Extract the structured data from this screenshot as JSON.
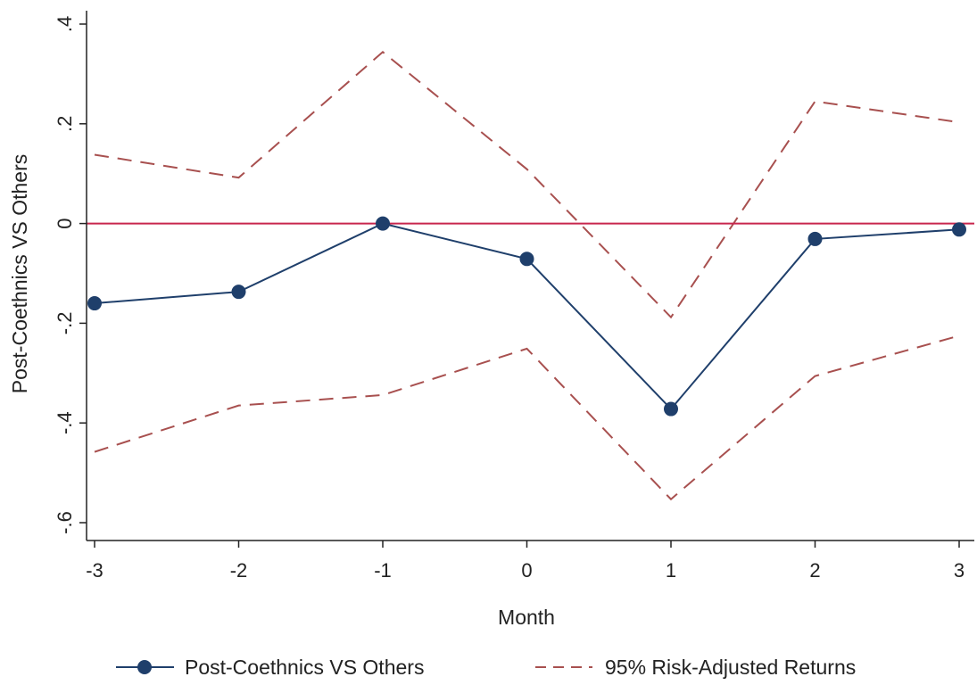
{
  "chart_data": {
    "type": "line",
    "title": "",
    "xlabel": "Month",
    "ylabel": "Post-Coethnics VS Others",
    "x": [
      -3,
      -2,
      -1,
      0,
      1,
      2,
      3
    ],
    "x_tick_labels": [
      "-3",
      "-2",
      "-1",
      "0",
      "1",
      "2",
      "3"
    ],
    "y_ticks": [
      -0.6,
      -0.4,
      -0.2,
      0,
      0.2,
      0.4
    ],
    "y_tick_labels": [
      "-.6",
      "-.4",
      "-.2",
      "0",
      ".2",
      ".4"
    ],
    "xlim": [
      -3,
      3
    ],
    "ylim": [
      -0.6,
      0.4
    ],
    "grid": false,
    "reference_line": {
      "y": 0,
      "color": "#c8264d"
    },
    "series": [
      {
        "name": "Post-Coethnics VS Others",
        "style": "solid-with-markers",
        "color": "#1f3f6b",
        "values": [
          -0.16,
          -0.137,
          0.0,
          -0.071,
          -0.372,
          -0.031,
          -0.012
        ]
      },
      {
        "name": "95% Risk-Adjusted Returns",
        "style": "dashed",
        "color": "#a8504f",
        "upper": [
          0.138,
          0.092,
          0.344,
          0.109,
          -0.188,
          0.245,
          0.203
        ],
        "lower": [
          -0.458,
          -0.365,
          -0.344,
          -0.251,
          -0.553,
          -0.306,
          -0.225
        ]
      }
    ],
    "legend": {
      "placement": "bottom",
      "entries": [
        "Post-Coethnics VS Others",
        "95% Risk-Adjusted Returns"
      ]
    }
  }
}
